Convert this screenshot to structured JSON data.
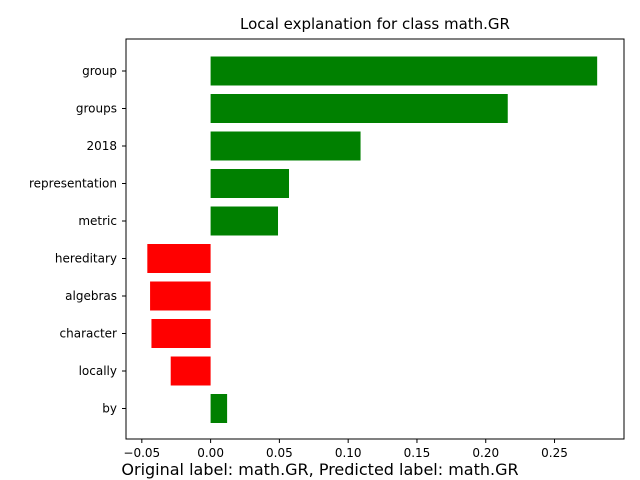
{
  "chart_data": {
    "type": "bar",
    "orientation": "horizontal",
    "title": "Local explanation for class math.GR",
    "footer": "Original label: math.GR, Predicted label: math.GR",
    "categories": [
      "group",
      "groups",
      "2018",
      "representation",
      "metric",
      "hereditary",
      "algebras",
      "character",
      "locally",
      "by"
    ],
    "values": [
      0.281,
      0.216,
      0.109,
      0.057,
      0.049,
      -0.046,
      -0.044,
      -0.043,
      -0.029,
      0.012
    ],
    "xlim": [
      -0.0615,
      0.3005
    ],
    "xticks": [
      -0.05,
      0.0,
      0.05,
      0.1,
      0.15,
      0.2,
      0.25
    ],
    "xtick_labels": [
      "−0.05",
      "0.00",
      "0.05",
      "0.10",
      "0.15",
      "0.20",
      "0.25"
    ],
    "colors": {
      "positive": "#008000",
      "negative": "#ff0000"
    },
    "grid": false,
    "xlabel": "",
    "ylabel": ""
  }
}
